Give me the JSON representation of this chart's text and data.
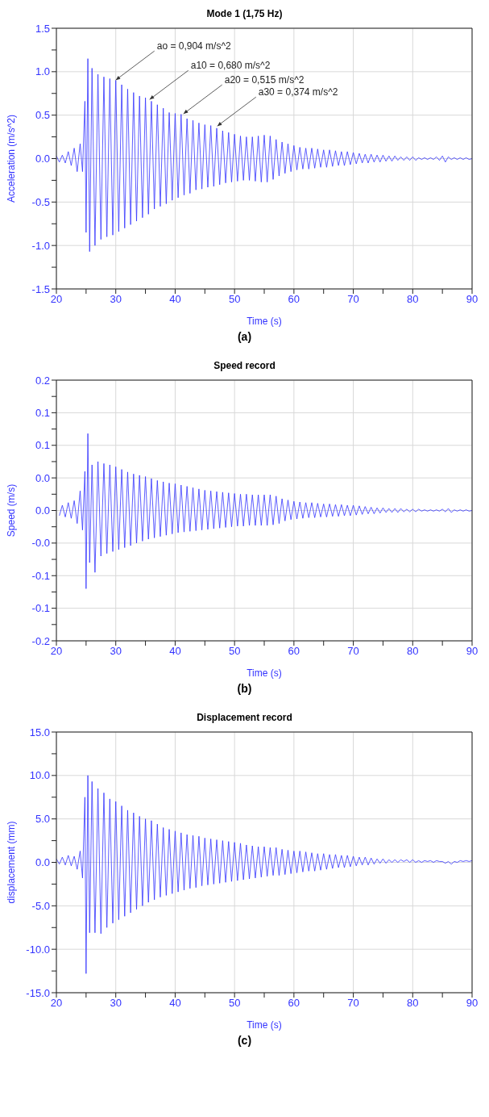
{
  "chart_data": [
    {
      "type": "line",
      "title": "Mode 1 (1,75 Hz)",
      "xlabel": "Time (s)",
      "ylabel": "Acceleration (m/s^2)",
      "grid": true,
      "xlim": [
        20,
        90
      ],
      "xticks": [
        20,
        {
          "value": 25,
          "label": null
        },
        30,
        {
          "value": 35,
          "label": null
        },
        40,
        {
          "value": 45,
          "label": null
        },
        50,
        {
          "value": 55,
          "label": null
        },
        60,
        {
          "value": 65,
          "label": null
        },
        70,
        {
          "value": 75,
          "label": null
        },
        80,
        {
          "value": 85,
          "label": null
        },
        90
      ],
      "ylim": [
        -1.5,
        1.5
      ],
      "yticks": [
        {
          "value": 1.5,
          "label": "1.5"
        },
        {
          "value": 1.25,
          "label": null
        },
        {
          "value": 1,
          "label": "1.0"
        },
        {
          "value": 0.75,
          "label": null
        },
        {
          "value": 0.5,
          "label": "0.5"
        },
        {
          "value": 0.25,
          "label": null
        },
        {
          "value": 0,
          "label": "0.0"
        },
        {
          "value": -0.25,
          "label": null
        },
        {
          "value": -0.5,
          "label": "-0.5"
        },
        {
          "value": -0.75,
          "label": null
        },
        {
          "value": -1,
          "label": "-1.0"
        },
        {
          "value": -1.25,
          "label": null
        },
        {
          "value": -1.5,
          "label": "-1.5"
        }
      ],
      "annotations": [
        {
          "text": "ao = 0,904  m/s^2",
          "x": 30,
          "y": 0.904
        },
        {
          "text": "a10 = 0,680 m/s^2",
          "x": 35.7,
          "y": 0.68
        },
        {
          "text": "a20 = 0,515 m/s^2",
          "x": 41.4,
          "y": 0.515
        },
        {
          "text": "a30 = 0,374 m/s^2",
          "x": 47.1,
          "y": 0.374
        },
        "(a)"
      ],
      "series": [
        {
          "color": "#3333ff",
          "x": [
            20,
            20.5,
            21,
            21.5,
            22,
            22.5,
            23,
            23.5,
            24,
            24.4,
            24.8,
            25,
            25.3,
            25.6,
            26,
            26.5,
            27,
            27.5,
            28,
            28.5,
            29,
            29.5,
            30,
            30.5,
            31,
            31.5,
            32,
            32.5,
            33,
            33.5,
            34,
            34.5,
            35,
            35.5,
            36,
            36.5,
            37,
            37.5,
            38,
            38.5,
            39,
            39.5,
            40,
            40.5,
            41,
            41.5,
            42,
            42.5,
            43,
            43.5,
            44,
            44.5,
            45,
            45.5,
            46,
            46.5,
            47,
            47.5,
            48,
            48.5,
            49,
            49.5,
            50,
            50.5,
            51,
            51.5,
            52,
            52.5,
            53,
            53.5,
            54,
            54.5,
            55,
            55.5,
            56,
            56.5,
            57,
            57.5,
            58,
            58.5,
            59,
            59.5,
            60,
            60.5,
            61,
            61.5,
            62,
            62.5,
            63,
            63.5,
            64,
            64.5,
            65,
            65.5,
            66,
            66.5,
            67,
            67.5,
            68,
            68.5,
            69,
            69.5,
            70,
            70.5,
            71,
            71.5,
            72,
            72.5,
            73,
            73.5,
            74,
            74.5,
            75,
            75.5,
            76,
            76.5,
            77,
            77.5,
            78,
            78.5,
            79,
            79.5,
            80,
            80.5,
            81,
            81.5,
            82,
            82.5,
            83,
            83.5,
            84,
            84.5,
            85,
            85.5,
            86,
            86.5,
            87,
            87.5,
            88,
            88.5,
            89,
            89.5,
            90
          ],
          "values": [
            0.03,
            -0.04,
            0.04,
            -0.05,
            0.08,
            -0.08,
            0.12,
            -0.15,
            0.17,
            -0.15,
            0.66,
            -0.85,
            1.15,
            -1.07,
            1.04,
            -1.0,
            0.97,
            -0.93,
            0.94,
            -0.9,
            0.92,
            -0.88,
            0.9,
            -0.84,
            0.85,
            -0.8,
            0.8,
            -0.76,
            0.76,
            -0.72,
            0.72,
            -0.68,
            0.7,
            -0.64,
            0.66,
            -0.58,
            0.62,
            -0.55,
            0.58,
            -0.52,
            0.53,
            -0.48,
            0.52,
            -0.45,
            0.51,
            -0.42,
            0.46,
            -0.4,
            0.44,
            -0.36,
            0.41,
            -0.35,
            0.39,
            -0.33,
            0.38,
            -0.32,
            0.35,
            -0.3,
            0.32,
            -0.28,
            0.3,
            -0.27,
            0.28,
            -0.26,
            0.26,
            -0.25,
            0.25,
            -0.25,
            0.25,
            -0.26,
            0.26,
            -0.27,
            0.27,
            -0.27,
            0.26,
            -0.24,
            0.22,
            -0.2,
            0.19,
            -0.17,
            0.17,
            -0.15,
            0.15,
            -0.13,
            0.13,
            -0.12,
            0.12,
            -0.12,
            0.12,
            -0.11,
            0.11,
            -0.1,
            0.1,
            -0.1,
            0.1,
            -0.09,
            0.09,
            -0.08,
            0.08,
            -0.08,
            0.08,
            -0.07,
            0.07,
            -0.06,
            0.06,
            -0.05,
            0.05,
            -0.05,
            0.05,
            -0.04,
            0.04,
            -0.04,
            0.04,
            -0.03,
            0.03,
            -0.03,
            0.03,
            -0.02,
            0.02,
            -0.02,
            0.02,
            -0.02,
            0.02,
            -0.02,
            0.01,
            -0.01,
            0.01,
            -0.01,
            0.01,
            -0.01,
            0.02,
            -0.02,
            0.03,
            -0.04,
            0.02,
            -0.01,
            0.01,
            -0.01,
            0.01,
            -0.01,
            0.01,
            -0.01,
            0
          ]
        }
      ]
    },
    {
      "type": "line",
      "title": "Speed record",
      "xlabel": "Time (s)",
      "ylabel": "Speed (m/s)",
      "grid": true,
      "xlim": [
        20,
        90
      ],
      "xticks": [
        20,
        {
          "value": 25,
          "label": null
        },
        30,
        {
          "value": 35,
          "label": null
        },
        40,
        {
          "value": 45,
          "label": null
        },
        50,
        {
          "value": 55,
          "label": null
        },
        60,
        {
          "value": 65,
          "label": null
        },
        70,
        {
          "value": 75,
          "label": null
        },
        80,
        {
          "value": 85,
          "label": null
        },
        90
      ],
      "ylim": [
        -0.2,
        0.2
      ],
      "yticks": [
        {
          "value": 0.2,
          "label": "0.2"
        },
        {
          "value": 0.175,
          "label": null
        },
        {
          "value": 0.15,
          "label": "0.1"
        },
        {
          "value": 0.125,
          "label": null
        },
        {
          "value": 0.1,
          "label": "0.1"
        },
        {
          "value": 0.075,
          "label": null
        },
        {
          "value": 0.05,
          "label": "0.0"
        },
        {
          "value": 0.025,
          "label": null
        },
        {
          "value": 0,
          "label": "0.0"
        },
        {
          "value": -0.025,
          "label": null
        },
        {
          "value": -0.05,
          "label": "-0.0"
        },
        {
          "value": -0.075,
          "label": null
        },
        {
          "value": -0.1,
          "label": "-0.1"
        },
        {
          "value": -0.125,
          "label": null
        },
        {
          "value": -0.15,
          "label": "-0.1"
        },
        {
          "value": -0.175,
          "label": null
        },
        {
          "value": -0.2,
          "label": "-0.2"
        }
      ],
      "annotations": [
        "(b)"
      ],
      "series": [
        {
          "color": "#3333ff",
          "x": [
            20.5,
            21,
            21.5,
            22,
            22.5,
            23,
            23.5,
            24,
            24.4,
            24.8,
            25,
            25.3,
            25.6,
            26,
            26.5,
            27,
            27.5,
            28,
            28.5,
            29,
            29.5,
            30,
            30.5,
            31,
            31.5,
            32,
            32.5,
            33,
            33.5,
            34,
            34.5,
            35,
            35.5,
            36,
            36.5,
            37,
            37.5,
            38,
            38.5,
            39,
            39.5,
            40,
            40.5,
            41,
            41.5,
            42,
            42.5,
            43,
            43.5,
            44,
            44.5,
            45,
            45.5,
            46,
            46.5,
            47,
            47.5,
            48,
            48.5,
            49,
            49.5,
            50,
            50.5,
            51,
            51.5,
            52,
            52.5,
            53,
            53.5,
            54,
            54.5,
            55,
            55.5,
            56,
            56.5,
            57,
            57.5,
            58,
            58.5,
            59,
            59.5,
            60,
            60.5,
            61,
            61.5,
            62,
            62.5,
            63,
            63.5,
            64,
            64.5,
            65,
            65.5,
            66,
            66.5,
            67,
            67.5,
            68,
            68.5,
            69,
            69.5,
            70,
            70.5,
            71,
            71.5,
            72,
            72.5,
            73,
            73.5,
            74,
            74.5,
            75,
            75.5,
            76,
            76.5,
            77,
            77.5,
            78,
            78.5,
            79,
            79.5,
            80,
            80.5,
            81,
            81.5,
            82,
            82.5,
            83,
            83.5,
            84,
            84.5,
            85,
            85.5,
            86,
            86.5,
            87,
            87.5,
            88,
            88.5,
            89,
            89.5,
            90
          ],
          "values": [
            -0.008,
            0.008,
            -0.01,
            0.012,
            -0.012,
            0.015,
            -0.02,
            0.03,
            -0.03,
            0.06,
            -0.12,
            0.118,
            -0.08,
            0.07,
            -0.095,
            0.075,
            -0.07,
            0.072,
            -0.066,
            0.07,
            -0.063,
            0.067,
            -0.06,
            0.063,
            -0.057,
            0.059,
            -0.054,
            0.056,
            -0.05,
            0.054,
            -0.047,
            0.052,
            -0.044,
            0.049,
            -0.042,
            0.046,
            -0.04,
            0.044,
            -0.038,
            0.042,
            -0.036,
            0.041,
            -0.034,
            0.039,
            -0.033,
            0.037,
            -0.032,
            0.035,
            -0.031,
            0.033,
            -0.03,
            0.031,
            -0.029,
            0.03,
            -0.028,
            0.029,
            -0.027,
            0.028,
            -0.026,
            0.027,
            -0.025,
            0.026,
            -0.024,
            0.025,
            -0.024,
            0.025,
            -0.023,
            0.024,
            -0.023,
            0.024,
            -0.023,
            0.024,
            -0.023,
            0.024,
            -0.022,
            0.022,
            -0.02,
            0.018,
            -0.016,
            0.016,
            -0.014,
            0.014,
            -0.013,
            0.013,
            -0.012,
            0.012,
            -0.011,
            0.012,
            -0.011,
            0.011,
            -0.01,
            0.01,
            -0.01,
            0.01,
            -0.009,
            0.009,
            -0.009,
            0.009,
            -0.008,
            0.008,
            -0.008,
            0.008,
            -0.007,
            0.007,
            -0.006,
            0.006,
            -0.005,
            0.005,
            -0.005,
            0.004,
            -0.004,
            0.004,
            -0.003,
            0.003,
            -0.003,
            0.003,
            -0.003,
            0.003,
            -0.002,
            0.002,
            -0.002,
            0.002,
            -0.002,
            0.002,
            -0.001,
            0.001,
            -0.001,
            0.001,
            -0.001,
            0.001,
            -0.001,
            0.002,
            -0.002,
            0.003,
            -0.003,
            0.001,
            -0.001,
            0.001,
            -0.001,
            0.001,
            -0.001,
            0
          ]
        }
      ]
    },
    {
      "type": "line",
      "title": "Displacement record",
      "xlabel": "Time (s)",
      "ylabel": "displacement (mm)",
      "grid": true,
      "xlim": [
        20,
        90
      ],
      "xticks": [
        20,
        {
          "value": 25,
          "label": null
        },
        30,
        {
          "value": 35,
          "label": null
        },
        40,
        {
          "value": 45,
          "label": null
        },
        50,
        {
          "value": 55,
          "label": null
        },
        60,
        {
          "value": 65,
          "label": null
        },
        70,
        {
          "value": 75,
          "label": null
        },
        80,
        {
          "value": 85,
          "label": null
        },
        90
      ],
      "ylim": [
        -15,
        15
      ],
      "yticks": [
        {
          "value": 15,
          "label": "15.0"
        },
        {
          "value": 12.5,
          "label": null
        },
        {
          "value": 10,
          "label": "10.0"
        },
        {
          "value": 7.5,
          "label": null
        },
        {
          "value": 5,
          "label": "5.0"
        },
        {
          "value": 2.5,
          "label": null
        },
        {
          "value": 0,
          "label": "0.0"
        },
        {
          "value": -2.5,
          "label": null
        },
        {
          "value": -5,
          "label": "-5.0"
        },
        {
          "value": -7.5,
          "label": null
        },
        {
          "value": -10,
          "label": "-10.0"
        },
        {
          "value": -12.5,
          "label": null
        },
        {
          "value": -15,
          "label": "-15.0"
        }
      ],
      "annotations": [
        "(c)"
      ],
      "series": [
        {
          "color": "#3333ff",
          "x": [
            20,
            20.5,
            21,
            21.5,
            22,
            22.5,
            23,
            23.5,
            24,
            24.4,
            24.8,
            25,
            25.3,
            25.6,
            26,
            26.5,
            27,
            27.5,
            28,
            28.5,
            29,
            29.5,
            30,
            30.5,
            31,
            31.5,
            32,
            32.5,
            33,
            33.5,
            34,
            34.5,
            35,
            35.5,
            36,
            36.5,
            37,
            37.5,
            38,
            38.5,
            39,
            39.5,
            40,
            40.5,
            41,
            41.5,
            42,
            42.5,
            43,
            43.5,
            44,
            44.5,
            45,
            45.5,
            46,
            46.5,
            47,
            47.5,
            48,
            48.5,
            49,
            49.5,
            50,
            50.5,
            51,
            51.5,
            52,
            52.5,
            53,
            53.5,
            54,
            54.5,
            55,
            55.5,
            56,
            56.5,
            57,
            57.5,
            58,
            58.5,
            59,
            59.5,
            60,
            60.5,
            61,
            61.5,
            62,
            62.5,
            63,
            63.5,
            64,
            64.5,
            65,
            65.5,
            66,
            66.5,
            67,
            67.5,
            68,
            68.5,
            69,
            69.5,
            70,
            70.5,
            71,
            71.5,
            72,
            72.5,
            73,
            73.5,
            74,
            74.5,
            75,
            75.5,
            76,
            76.5,
            77,
            77.5,
            78,
            78.5,
            79,
            79.5,
            80,
            80.5,
            81,
            81.5,
            82,
            82.5,
            83,
            83.5,
            84,
            84.5,
            85,
            85.5,
            86,
            86.5,
            87,
            87.5,
            88,
            88.5,
            89,
            89.5,
            90
          ],
          "values": [
            0.4,
            -0.2,
            0.6,
            -0.3,
            0.8,
            -0.4,
            0.7,
            -0.8,
            1.3,
            -1.8,
            7.5,
            -12.8,
            10.0,
            -8.1,
            9.3,
            -8.1,
            8.5,
            -8.2,
            8.0,
            -7.5,
            7.3,
            -7.0,
            7.0,
            -6.6,
            6.5,
            -6.2,
            6.0,
            -5.8,
            5.7,
            -5.4,
            5.3,
            -5.0,
            5.0,
            -4.6,
            4.8,
            -4.3,
            4.4,
            -4.0,
            4.0,
            -3.8,
            3.8,
            -3.6,
            3.6,
            -3.4,
            3.4,
            -3.2,
            3.2,
            -3.0,
            3.1,
            -2.9,
            3.0,
            -2.7,
            2.8,
            -2.6,
            2.7,
            -2.5,
            2.6,
            -2.4,
            2.5,
            -2.3,
            2.4,
            -2.2,
            2.3,
            -2.1,
            2.2,
            -2.0,
            2.0,
            -1.9,
            1.9,
            -1.8,
            1.8,
            -1.7,
            1.8,
            -1.6,
            1.7,
            -1.5,
            1.7,
            -1.5,
            1.5,
            -1.4,
            1.4,
            -1.3,
            1.3,
            -1.2,
            1.3,
            -1.1,
            1.2,
            -1.0,
            1.1,
            -1.0,
            1.0,
            -0.9,
            1.0,
            -0.8,
            0.9,
            -0.7,
            0.9,
            -0.6,
            0.8,
            -0.6,
            0.8,
            -0.5,
            0.7,
            -0.4,
            0.6,
            -0.3,
            0.6,
            -0.3,
            0.5,
            -0.2,
            0.4,
            -0.1,
            0.4,
            -0.1,
            0.3,
            0.0,
            0.3,
            0.0,
            0.3,
            0.1,
            0.3,
            0.0,
            0.3,
            0.0,
            0.2,
            0.0,
            0.2,
            0.1,
            0.2,
            0.0,
            0.2,
            0.1,
            0.1,
            -0.1,
            0.1,
            -0.2,
            0.1,
            0.0,
            0.2,
            0.1,
            0.2,
            0.1,
            0.2
          ]
        }
      ]
    }
  ]
}
